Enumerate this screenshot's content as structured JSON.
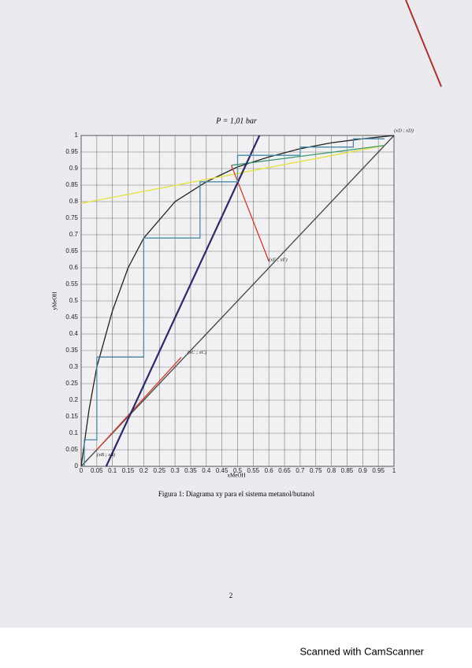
{
  "chart_data": {
    "type": "line",
    "title": "P = 1,01 bar",
    "x_label": "xMeOH",
    "y_label": "yMeOH",
    "xlim": [
      0,
      1
    ],
    "ylim": [
      0,
      1
    ],
    "xticks": [
      0,
      0.05,
      0.1,
      0.15,
      0.2,
      0.25,
      0.3,
      0.35,
      0.4,
      0.45,
      0.5,
      0.55,
      0.6,
      0.65,
      0.7,
      0.75,
      0.8,
      0.85,
      0.9,
      0.95,
      1
    ],
    "yticks": [
      0,
      0.05,
      0.1,
      0.15,
      0.2,
      0.25,
      0.3,
      0.35,
      0.4,
      0.45,
      0.5,
      0.55,
      0.6,
      0.65,
      0.7,
      0.75,
      0.8,
      0.85,
      0.9,
      0.95,
      1
    ],
    "grid": true,
    "series": [
      {
        "color": "#222222",
        "x": [
          0,
          0.025,
          0.05,
          0.1,
          0.15,
          0.2,
          0.3,
          0.4,
          0.5,
          0.6,
          0.7,
          0.8,
          0.9,
          1
        ],
        "values": [
          0,
          0.17,
          0.3,
          0.47,
          0.6,
          0.69,
          0.8,
          0.86,
          0.905,
          0.935,
          0.96,
          0.978,
          0.99,
          1
        ]
      },
      {
        "color": "#444444",
        "x": [
          0,
          1
        ],
        "values": [
          0,
          1
        ]
      },
      {
        "color": "#e6e23a",
        "x": [
          0,
          0.97
        ],
        "values": [
          0.795,
          0.97
        ]
      },
      {
        "color": "#3a9a6a",
        "x": [
          0.48,
          0.97
        ],
        "values": [
          0.91,
          0.97
        ]
      },
      {
        "color": "#d43a2a",
        "x": [
          0.48,
          0.6
        ],
        "values": [
          0.91,
          0.62
        ]
      },
      {
        "color": "#d43a2a",
        "x": [
          0.05,
          0.32
        ],
        "values": [
          0.05,
          0.33
        ]
      },
      {
        "color": "#2a2a6a",
        "x": [
          0.08,
          0.57
        ],
        "values": [
          0,
          1
        ]
      },
      {
        "color": "#222222",
        "x": [
          0.05,
          0.2
        ],
        "values": [
          0.33,
          0.33
        ]
      },
      {
        "color": "#4a8aa8",
        "x": [
          0.97,
          0.87,
          0.87,
          0.7,
          0.7,
          0.5,
          0.5,
          0.38,
          0.38,
          0.2,
          0.2,
          0.05,
          0.05,
          0.01,
          0.01
        ],
        "values": [
          0.99,
          0.99,
          0.965,
          0.965,
          0.94,
          0.94,
          0.86,
          0.86,
          0.69,
          0.69,
          0.33,
          0.33,
          0.08,
          0.08,
          0
        ]
      }
    ],
    "annotations": [
      {
        "text": "(xF ; xF)",
        "x": 0.59,
        "y": 0.61
      },
      {
        "text": "(xC ; xC)",
        "x": 0.33,
        "y": 0.33
      },
      {
        "text": "(xB ; xB)",
        "x": 0.04,
        "y": 0.02
      },
      {
        "text": "(xD ; xD)",
        "x": 0.99,
        "y": 1
      }
    ]
  },
  "caption": "Figura 1: Diagrama xy para el sistema metanol/butanol",
  "page_number": "2",
  "footer": "Scanned with CamScanner"
}
